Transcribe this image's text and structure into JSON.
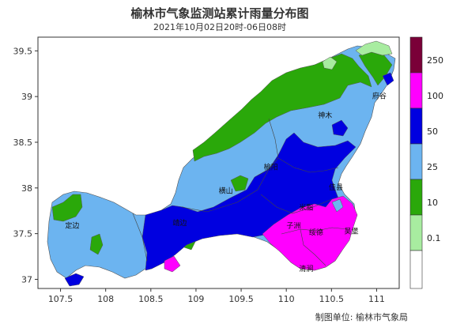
{
  "title": "榆林市气象监测站累计雨量分布图",
  "subtitle": "2021年10月02日20时-06日08时",
  "credit": "制图单位: 榆林市气象局",
  "axes": {
    "x_ticks": [
      "107.5",
      "108",
      "108.5",
      "109",
      "109.5",
      "110",
      "110.5",
      "111"
    ],
    "y_ticks": [
      "39.5",
      "39",
      "38.5",
      "38",
      "37.5",
      "37"
    ],
    "x_range": [
      107.25,
      111.25
    ],
    "y_range": [
      36.9,
      39.65
    ]
  },
  "legend": {
    "labels": [
      "250",
      "100",
      "50",
      "25",
      "10",
      "0.1"
    ],
    "colors": [
      "#7a0038",
      "#ff00ff",
      "#0000e0",
      "#6cb4f0",
      "#2aa80a",
      "#a8eca0"
    ]
  },
  "cities": [
    {
      "name": "府谷",
      "lon": 111.03,
      "lat": 38.98
    },
    {
      "name": "神木",
      "lon": 110.43,
      "lat": 38.77
    },
    {
      "name": "榆阳",
      "lon": 109.83,
      "lat": 38.2
    },
    {
      "name": "横山",
      "lon": 109.33,
      "lat": 37.94
    },
    {
      "name": "佳县",
      "lon": 110.55,
      "lat": 37.98
    },
    {
      "name": "定边",
      "lon": 107.63,
      "lat": 37.56
    },
    {
      "name": "靖边",
      "lon": 108.82,
      "lat": 37.59
    },
    {
      "name": "米脂",
      "lon": 110.22,
      "lat": 37.76
    },
    {
      "name": "子洲",
      "lon": 110.08,
      "lat": 37.56
    },
    {
      "name": "绥德",
      "lon": 110.33,
      "lat": 37.49
    },
    {
      "name": "吴堡",
      "lon": 110.72,
      "lat": 37.5
    },
    {
      "name": "清涧",
      "lon": 110.22,
      "lat": 37.09
    }
  ]
}
